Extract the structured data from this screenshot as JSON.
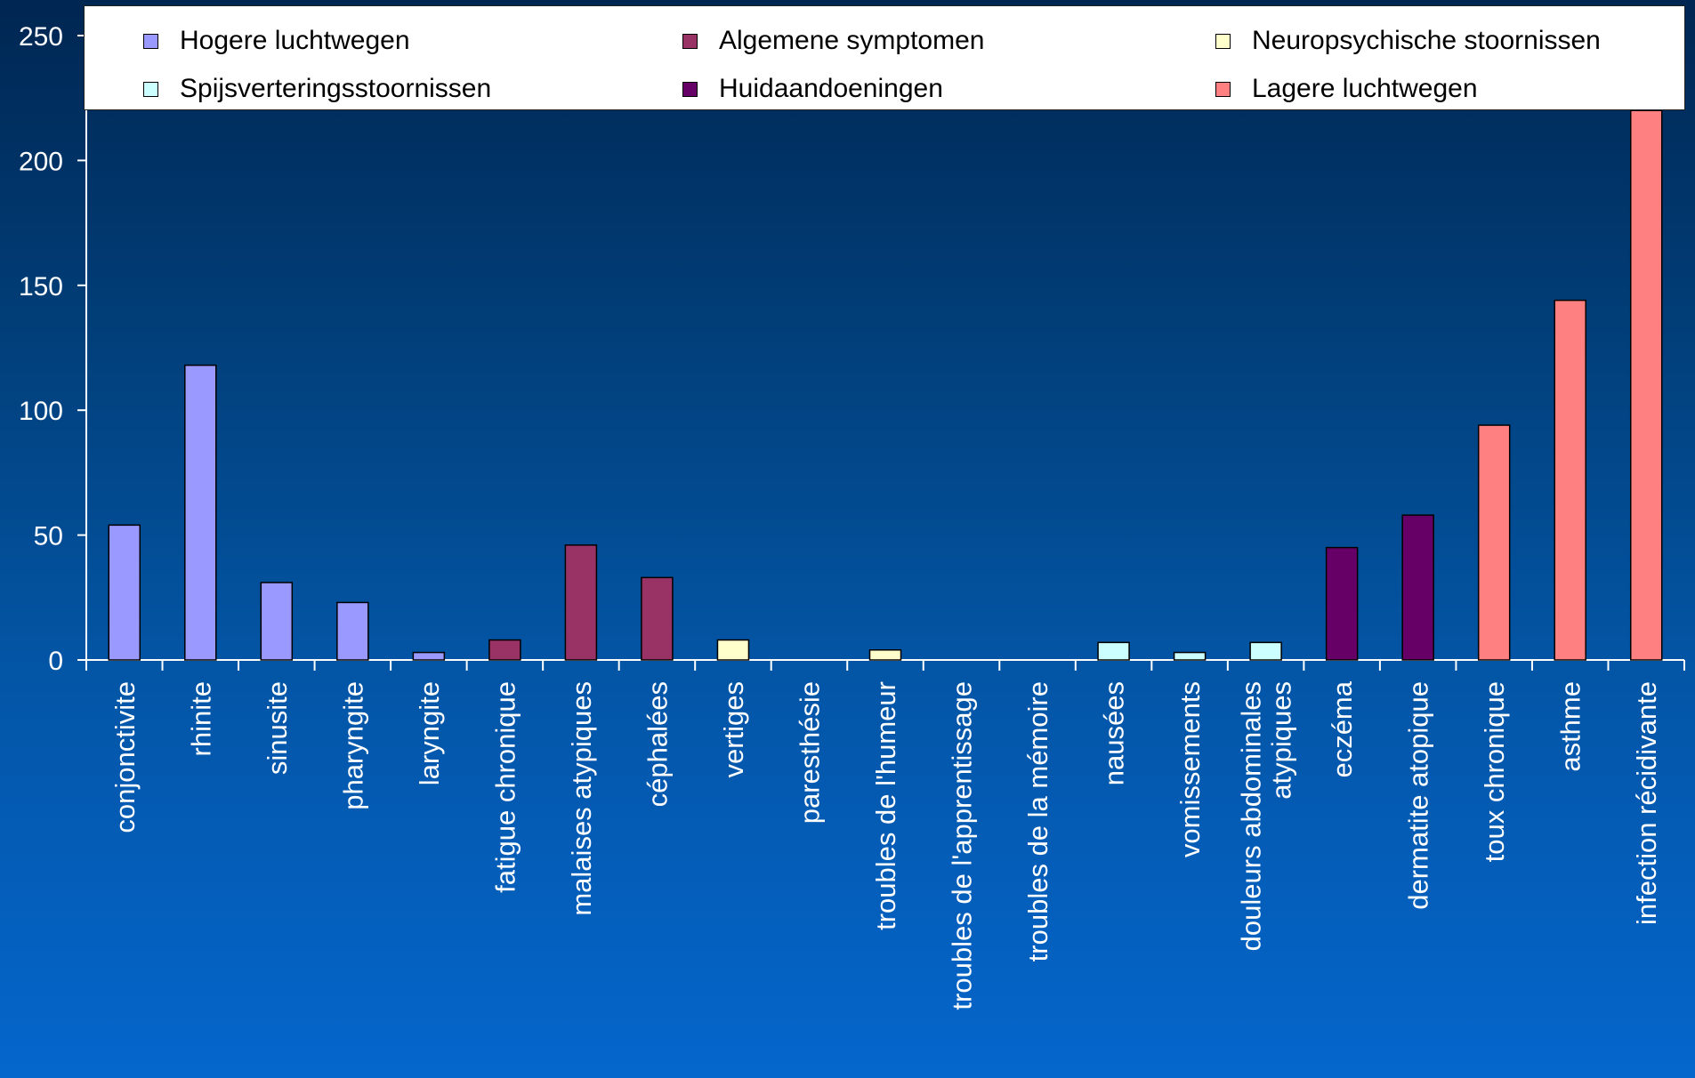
{
  "chart_data": {
    "type": "bar",
    "title": "",
    "xlabel": "",
    "ylabel": "",
    "ylim": [
      0,
      250
    ],
    "yticks": [
      "0",
      "50",
      "100",
      "150",
      "200",
      "250"
    ],
    "grid": false,
    "legend_position": "top",
    "groups": [
      {
        "name": "Hogere luchtwegen",
        "color": "#9999ff"
      },
      {
        "name": "Algemene symptomen",
        "color": "#993366"
      },
      {
        "name": "Neuropsychische stoornissen",
        "color": "#ffffcc"
      },
      {
        "name": "Spijsverteringsstoornissen",
        "color": "#ccffff"
      },
      {
        "name": "Huidaandoeningen",
        "color": "#660066"
      },
      {
        "name": "Lagere luchtwegen",
        "color": "#ff8080"
      }
    ],
    "categories": [
      {
        "label": [
          "conjonctivite"
        ],
        "value": 54,
        "group": 0
      },
      {
        "label": [
          "rhinite"
        ],
        "value": 118,
        "group": 0
      },
      {
        "label": [
          "sinusite"
        ],
        "value": 31,
        "group": 0
      },
      {
        "label": [
          "pharyngite"
        ],
        "value": 23,
        "group": 0
      },
      {
        "label": [
          "laryngite"
        ],
        "value": 3,
        "group": 0
      },
      {
        "label": [
          "fatigue chronique"
        ],
        "value": 8,
        "group": 1
      },
      {
        "label": [
          "malaises atypiques"
        ],
        "value": 46,
        "group": 1
      },
      {
        "label": [
          "céphalées"
        ],
        "value": 33,
        "group": 1
      },
      {
        "label": [
          "vertiges"
        ],
        "value": 8,
        "group": 2
      },
      {
        "label": [
          "paresthésie"
        ],
        "value": 0,
        "group": 2
      },
      {
        "label": [
          "troubles de l'humeur"
        ],
        "value": 4,
        "group": 2
      },
      {
        "label": [
          "troubles de l'apprentissage"
        ],
        "value": 0,
        "group": 2
      },
      {
        "label": [
          "troubles de la mémoire"
        ],
        "value": 0,
        "group": 2
      },
      {
        "label": [
          "nausées"
        ],
        "value": 7,
        "group": 3
      },
      {
        "label": [
          "vomissements"
        ],
        "value": 3,
        "group": 3
      },
      {
        "label": [
          "douleurs abdominales",
          "atypiques"
        ],
        "value": 7,
        "group": 3
      },
      {
        "label": [
          "eczéma"
        ],
        "value": 45,
        "group": 4
      },
      {
        "label": [
          "dermatite atopique"
        ],
        "value": 58,
        "group": 4
      },
      {
        "label": [
          "toux chronique"
        ],
        "value": 94,
        "group": 5
      },
      {
        "label": [
          "asthme"
        ],
        "value": 144,
        "group": 5
      },
      {
        "label": [
          "infection récidivante"
        ],
        "value": 220,
        "group": 5
      }
    ]
  }
}
